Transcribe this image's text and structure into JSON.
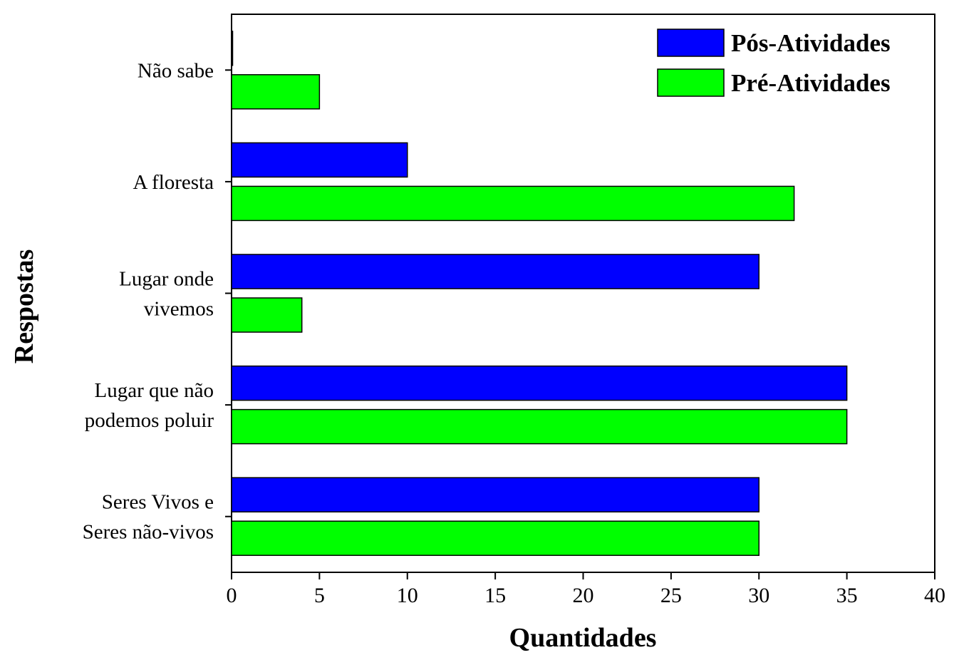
{
  "chart_data": {
    "type": "bar",
    "orientation": "horizontal",
    "categories": [
      [
        "Não sabe"
      ],
      [
        "A floresta"
      ],
      [
        "Lugar onde",
        "vivemos"
      ],
      [
        "Lugar que não",
        "podemos poluir"
      ],
      [
        "Seres Vivos e",
        "Seres não-vivos"
      ]
    ],
    "series": [
      {
        "name": "Pós-Atividades",
        "color": "#0000ff",
        "values": [
          0,
          10,
          30,
          35,
          30
        ]
      },
      {
        "name": "Pré-Atividades",
        "color": "#00ff00",
        "values": [
          5,
          32,
          4,
          35,
          30
        ]
      }
    ],
    "xlabel": "Quantidades",
    "ylabel": "Respostas",
    "xlim": [
      0,
      40
    ],
    "xticks": [
      0,
      5,
      10,
      15,
      20,
      25,
      30,
      35,
      40
    ],
    "grid": false,
    "legend_position": "top-right"
  }
}
